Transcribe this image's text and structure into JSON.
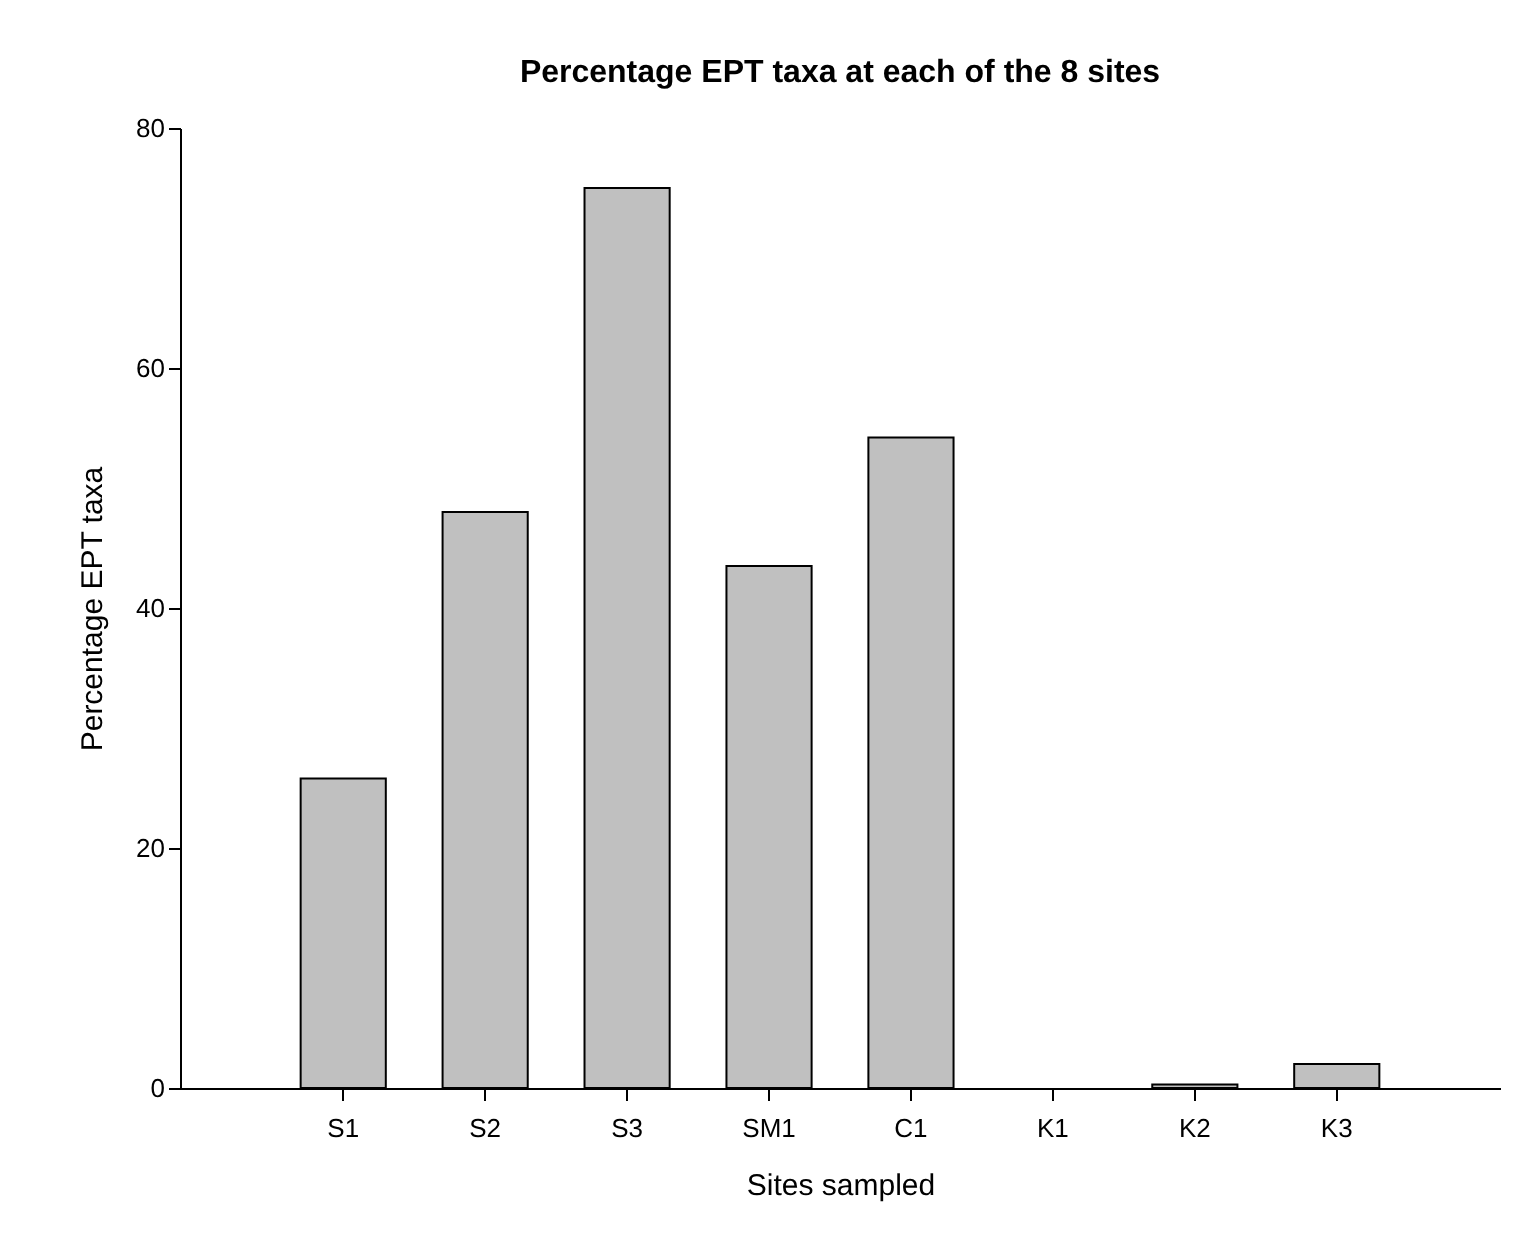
{
  "chart_data": {
    "type": "bar",
    "title": "Percentage EPT taxa at each of the 8 sites",
    "xlabel": "Sites sampled",
    "ylabel": "Percentage EPT taxa",
    "categories": [
      "S1",
      "S2",
      "S3",
      "SM1",
      "C1",
      "K1",
      "K2",
      "K3"
    ],
    "values": [
      25.8,
      48,
      75,
      43.5,
      54.2,
      0,
      0.3,
      2
    ],
    "color": "#c0c0c0",
    "ylim": [
      0,
      80
    ],
    "yticks": [
      0,
      20,
      40,
      60,
      80
    ],
    "grid": false
  }
}
